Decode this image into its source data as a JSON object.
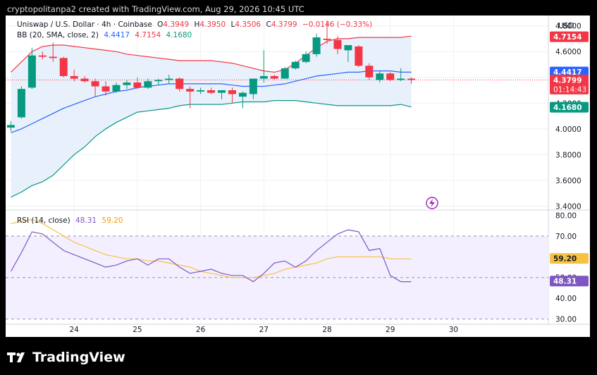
{
  "credit": "cryptopolitanpa2 created with TradingView.com, Aug 29, 2026 10:45 UTC",
  "legend": {
    "symbol": "Uniswap / U.S. Dollar · 4h · Coinbase",
    "o_label": "O",
    "o": "4.3949",
    "h_label": "H",
    "h": "4.3950",
    "l_label": "L",
    "l": "4.3506",
    "c_label": "C",
    "c": "4.3799",
    "change": "−0.0146 (−0.33%)",
    "bb_label": "BB (20, SMA, close, 2)",
    "bb_basis": "4.4417",
    "bb_upper": "4.7154",
    "bb_lower": "4.1680",
    "rsi_label": "RSI (14, close)",
    "rsi_value": "48.31",
    "rsi_ma": "59.20"
  },
  "footer": {
    "brand": "TradingView"
  },
  "colors": {
    "up": "#089981",
    "down": "#f23645",
    "basis": "#2962ff",
    "upper": "#f23645",
    "lower": "#089981",
    "band_fill": "#e8f1fb",
    "rsi": "#7e57c2",
    "rsi_ma": "#f7c143",
    "rsi_fill": "#f3efff",
    "grid": "#eef0f3",
    "axis_text": "#131722"
  },
  "chart_data": [
    {
      "type": "candlestick",
      "title": "Uniswap / U.S. Dollar · 4h · Coinbase",
      "currency_label": "USD",
      "y_ticks": [
        "4.8000",
        "4.6000",
        "4.4000",
        "4.2000",
        "4.0000",
        "3.8000",
        "3.6000",
        "3.4000"
      ],
      "ylim": [
        3.37,
        4.88
      ],
      "x_ticks": [
        {
          "label": "24",
          "t": 6
        },
        {
          "label": "25",
          "t": 12
        },
        {
          "label": "26",
          "t": 18
        },
        {
          "label": "27",
          "t": 24
        },
        {
          "label": "28",
          "t": 30
        },
        {
          "label": "29",
          "t": 36
        },
        {
          "label": "30",
          "t": 42
        }
      ],
      "xlim": [
        -0.5,
        51
      ],
      "candles": [
        {
          "o": 4.01,
          "h": 4.06,
          "l": 3.98,
          "c": 4.03
        },
        {
          "o": 4.09,
          "h": 4.33,
          "l": 4.08,
          "c": 4.31
        },
        {
          "o": 4.32,
          "h": 4.63,
          "l": 4.31,
          "c": 4.57
        },
        {
          "o": 4.57,
          "h": 4.6,
          "l": 4.54,
          "c": 4.56
        },
        {
          "o": 4.56,
          "h": 4.67,
          "l": 4.52,
          "c": 4.55
        },
        {
          "o": 4.55,
          "h": 4.56,
          "l": 4.4,
          "c": 4.41
        },
        {
          "o": 4.41,
          "h": 4.46,
          "l": 4.37,
          "c": 4.39
        },
        {
          "o": 4.39,
          "h": 4.41,
          "l": 4.36,
          "c": 4.37
        },
        {
          "o": 4.37,
          "h": 4.39,
          "l": 4.25,
          "c": 4.33
        },
        {
          "o": 4.33,
          "h": 4.37,
          "l": 4.26,
          "c": 4.29
        },
        {
          "o": 4.29,
          "h": 4.36,
          "l": 4.28,
          "c": 4.34
        },
        {
          "o": 4.34,
          "h": 4.38,
          "l": 4.31,
          "c": 4.36
        },
        {
          "o": 4.36,
          "h": 4.4,
          "l": 4.31,
          "c": 4.32
        },
        {
          "o": 4.32,
          "h": 4.39,
          "l": 4.31,
          "c": 4.37
        },
        {
          "o": 4.37,
          "h": 4.39,
          "l": 4.34,
          "c": 4.38
        },
        {
          "o": 4.38,
          "h": 4.42,
          "l": 4.35,
          "c": 4.39
        },
        {
          "o": 4.39,
          "h": 4.4,
          "l": 4.29,
          "c": 4.31
        },
        {
          "o": 4.31,
          "h": 4.33,
          "l": 4.16,
          "c": 4.29
        },
        {
          "o": 4.29,
          "h": 4.32,
          "l": 4.27,
          "c": 4.3
        },
        {
          "o": 4.3,
          "h": 4.32,
          "l": 4.27,
          "c": 4.28
        },
        {
          "o": 4.28,
          "h": 4.3,
          "l": 4.23,
          "c": 4.3
        },
        {
          "o": 4.3,
          "h": 4.32,
          "l": 4.2,
          "c": 4.27
        },
        {
          "o": 4.25,
          "h": 4.29,
          "l": 4.16,
          "c": 4.28
        },
        {
          "o": 4.27,
          "h": 4.39,
          "l": 4.23,
          "c": 4.39
        },
        {
          "o": 4.39,
          "h": 4.61,
          "l": 4.36,
          "c": 4.41
        },
        {
          "o": 4.41,
          "h": 4.42,
          "l": 4.38,
          "c": 4.39
        },
        {
          "o": 4.39,
          "h": 4.48,
          "l": 4.39,
          "c": 4.47
        },
        {
          "o": 4.47,
          "h": 4.53,
          "l": 4.46,
          "c": 4.52
        },
        {
          "o": 4.52,
          "h": 4.6,
          "l": 4.51,
          "c": 4.58
        },
        {
          "o": 4.58,
          "h": 4.74,
          "l": 4.56,
          "c": 4.71
        },
        {
          "o": 4.7,
          "h": 4.84,
          "l": 4.66,
          "c": 4.69
        },
        {
          "o": 4.69,
          "h": 4.72,
          "l": 4.58,
          "c": 4.62
        },
        {
          "o": 4.61,
          "h": 4.64,
          "l": 4.52,
          "c": 4.65
        },
        {
          "o": 4.64,
          "h": 4.65,
          "l": 4.48,
          "c": 4.49
        },
        {
          "o": 4.49,
          "h": 4.51,
          "l": 4.38,
          "c": 4.4
        },
        {
          "o": 4.38,
          "h": 4.45,
          "l": 4.36,
          "c": 4.43
        },
        {
          "o": 4.43,
          "h": 4.44,
          "l": 4.37,
          "c": 4.38
        },
        {
          "o": 4.38,
          "h": 4.47,
          "l": 4.37,
          "c": 4.39
        },
        {
          "o": 4.39,
          "h": 4.4,
          "l": 4.35,
          "c": 4.38
        }
      ],
      "bb_upper": [
        4.44,
        4.52,
        4.6,
        4.64,
        4.65,
        4.65,
        4.64,
        4.63,
        4.62,
        4.61,
        4.6,
        4.58,
        4.57,
        4.56,
        4.55,
        4.54,
        4.53,
        4.53,
        4.53,
        4.53,
        4.52,
        4.51,
        4.49,
        4.47,
        4.45,
        4.44,
        4.46,
        4.51,
        4.57,
        4.63,
        4.68,
        4.7,
        4.7,
        4.71,
        4.71,
        4.71,
        4.71,
        4.71,
        4.72
      ],
      "bb_basis": [
        3.97,
        4.0,
        4.04,
        4.08,
        4.12,
        4.16,
        4.19,
        4.22,
        4.25,
        4.27,
        4.29,
        4.3,
        4.32,
        4.33,
        4.34,
        4.35,
        4.35,
        4.35,
        4.35,
        4.35,
        4.35,
        4.34,
        4.33,
        4.33,
        4.33,
        4.34,
        4.35,
        4.37,
        4.39,
        4.41,
        4.42,
        4.43,
        4.44,
        4.44,
        4.45,
        4.45,
        4.45,
        4.44,
        4.44
      ],
      "bb_lower": [
        3.47,
        3.51,
        3.56,
        3.59,
        3.64,
        3.72,
        3.8,
        3.86,
        3.94,
        4.0,
        4.05,
        4.09,
        4.13,
        4.14,
        4.15,
        4.16,
        4.18,
        4.19,
        4.19,
        4.19,
        4.19,
        4.2,
        4.21,
        4.21,
        4.21,
        4.22,
        4.22,
        4.22,
        4.21,
        4.2,
        4.19,
        4.18,
        4.18,
        4.18,
        4.18,
        4.18,
        4.18,
        4.19,
        4.17
      ],
      "last_price": 4.3799,
      "price_labels": [
        {
          "text": "4.7154",
          "value": 4.7154,
          "series": "upper"
        },
        {
          "text": "4.4417",
          "value": 4.4417,
          "series": "basis"
        },
        {
          "text": "4.3799",
          "value": 4.3799,
          "series": "last",
          "extra": "01:14:43"
        },
        {
          "text": "4.1680",
          "value": 4.168,
          "series": "lower"
        }
      ]
    },
    {
      "type": "line",
      "title": "RSI (14, close)",
      "y_ticks": [
        "80.00",
        "70.00",
        "60.00",
        "50.00",
        "40.00",
        "30.00"
      ],
      "ylim": [
        27.5,
        82.5
      ],
      "band": [
        30,
        70
      ],
      "dashed_levels": [
        70,
        50,
        30
      ],
      "series": [
        {
          "name": "RSI",
          "values": [
            53,
            62,
            72,
            71,
            67,
            63,
            61,
            59,
            57,
            55,
            56,
            58,
            59,
            56,
            59,
            59,
            55,
            52,
            53,
            54,
            52,
            51,
            51,
            48,
            52,
            57,
            58,
            55,
            58,
            63,
            67,
            71,
            73,
            72,
            63,
            64,
            51,
            48,
            48
          ]
        },
        {
          "name": "RSI MA",
          "values": [
            76,
            77,
            78,
            76,
            73,
            70,
            67,
            65,
            63,
            61,
            60,
            59,
            59,
            58,
            58,
            57,
            56,
            55,
            53,
            52,
            51,
            50,
            50,
            50,
            51,
            52,
            54,
            55,
            56,
            57,
            59,
            60,
            60,
            60,
            60,
            60,
            59,
            59,
            59
          ]
        }
      ],
      "price_labels": [
        {
          "text": "59.20",
          "value": 59.2,
          "series": "ma"
        },
        {
          "text": "48.31",
          "value": 48.31,
          "series": "rsi"
        }
      ]
    }
  ]
}
